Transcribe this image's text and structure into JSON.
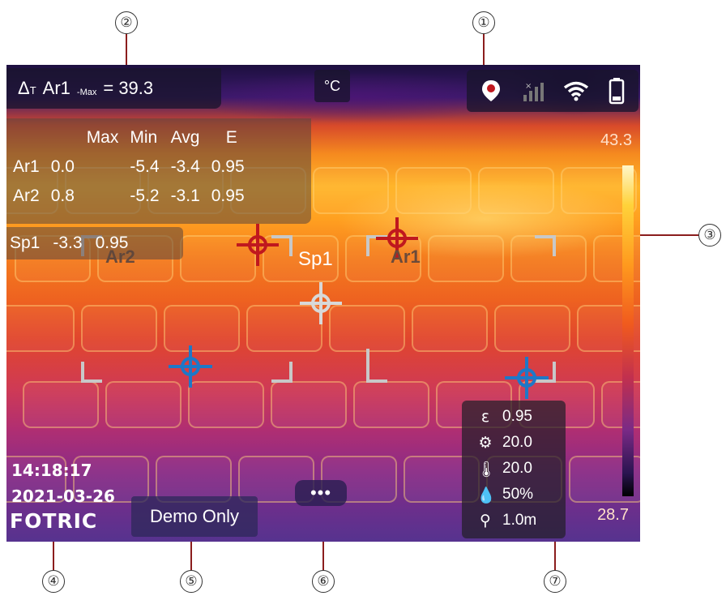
{
  "callouts": [
    "①",
    "②",
    "③",
    "④",
    "⑤",
    "⑥",
    "⑦"
  ],
  "header": {
    "delta_symbol": "Δ",
    "delta_sub": "T",
    "area": "Ar1",
    "area_sub": "-Max",
    "value": "= 39.3",
    "unit": "°C"
  },
  "status_icons": [
    "gps-icon",
    "no-signal-icon",
    "wifi-icon",
    "battery-icon"
  ],
  "measurements": {
    "headers": [
      "",
      "Max",
      "Min",
      "Avg",
      "E"
    ],
    "rows": [
      [
        "Ar1",
        "0.0",
        "-5.4",
        "-3.4",
        "0.95"
      ],
      [
        "Ar2",
        "0.8",
        "-5.2",
        "-3.1",
        "0.95"
      ]
    ],
    "spot": [
      "Sp1",
      "-3.3",
      "0.95"
    ]
  },
  "scale": {
    "max": "43.3",
    "min": "28.7"
  },
  "overlay_labels": {
    "ar1": "Ar1",
    "ar2": "Ar2",
    "sp1": "Sp1"
  },
  "footer": {
    "time": "14:18:17",
    "date": "2021-03-26",
    "logo": "FOTRIC",
    "demo": "Demo Only",
    "more": "•••"
  },
  "params": [
    {
      "icon": "emissivity-icon",
      "glyph": "ε",
      "value": "0.95"
    },
    {
      "icon": "reflected-temp-icon",
      "glyph": "⚙",
      "value": "20.0"
    },
    {
      "icon": "thermometer-icon",
      "glyph": "🌡",
      "value": "20.0"
    },
    {
      "icon": "humidity-icon",
      "glyph": "💧",
      "value": "50%"
    },
    {
      "icon": "distance-icon",
      "glyph": "⚲",
      "value": "1.0m"
    }
  ],
  "colors": {
    "marker_red": "#c0181e",
    "marker_blue": "#1e78c8",
    "bracket": "#c8c8c8"
  }
}
